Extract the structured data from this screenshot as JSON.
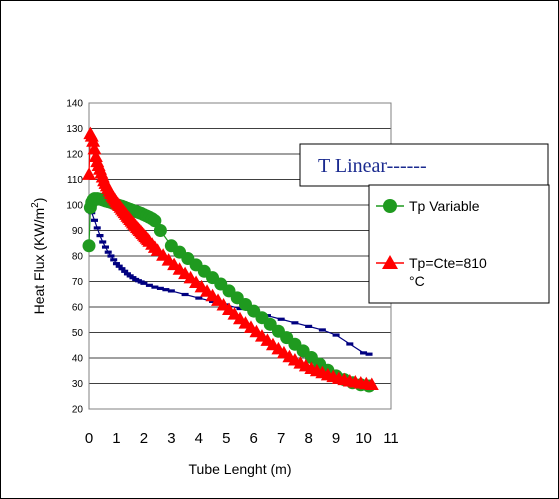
{
  "chart_data": {
    "type": "line",
    "xlabel": "Tube Lenght (m)",
    "ylabel": "Heat Flux  (KW/m",
    "ylabel_sup": "2",
    "ylabel_tail": ")",
    "annotation": "T Linear------",
    "xlim": [
      0,
      11
    ],
    "ylim": [
      20,
      140
    ],
    "x_ticks": [
      "0",
      "1",
      "2",
      "3",
      "4",
      "5",
      "6",
      "7",
      "8",
      "9",
      "10",
      "11"
    ],
    "y_ticks": [
      "20",
      "30",
      "40",
      "50",
      "60",
      "70",
      "80",
      "90",
      "100",
      "110",
      "120",
      "130",
      "140"
    ],
    "grid": true,
    "legend_position": "right",
    "colors": {
      "blue": "#000080",
      "green": "#1f9a1f",
      "red": "#ff0000"
    },
    "series": [
      {
        "name": "",
        "style": "blue-dash-line",
        "x": [
          0.0,
          0.05,
          0.1,
          0.2,
          0.3,
          0.4,
          0.5,
          0.6,
          0.7,
          0.8,
          0.9,
          1.0,
          1.1,
          1.2,
          1.3,
          1.4,
          1.5,
          1.6,
          1.7,
          1.8,
          1.9,
          2.0,
          2.2,
          2.4,
          2.6,
          2.8,
          3.0,
          3.5,
          4.0,
          4.5,
          5.0,
          5.5,
          6.0,
          6.5,
          7.0,
          7.5,
          8.0,
          8.5,
          9.0,
          9.5,
          10.0,
          10.2
        ],
        "y": [
          98,
          99,
          97,
          94,
          91,
          88,
          85.5,
          83.5,
          81.5,
          80,
          78.5,
          77,
          76,
          75,
          74,
          73,
          72.2,
          71.5,
          70.8,
          70.3,
          69.8,
          69.3,
          68.5,
          67.8,
          67.3,
          66.8,
          66.3,
          64.9,
          63.5,
          62.2,
          60.8,
          59.4,
          58,
          56.6,
          55.2,
          53.8,
          52.4,
          51,
          49,
          45.5,
          42,
          41.5
        ]
      },
      {
        "name": "Tp Variable",
        "x": [
          0.0,
          0.05,
          0.1,
          0.15,
          0.2,
          0.3,
          0.4,
          0.5,
          0.6,
          0.7,
          0.8,
          0.9,
          1.0,
          1.1,
          1.2,
          1.3,
          1.4,
          1.5,
          1.6,
          1.7,
          1.8,
          1.9,
          2.0,
          2.1,
          2.2,
          2.3,
          2.4,
          2.6,
          3.0,
          3.3,
          3.6,
          3.9,
          4.2,
          4.5,
          4.8,
          5.1,
          5.4,
          5.7,
          6.0,
          6.3,
          6.6,
          6.9,
          7.2,
          7.5,
          7.8,
          8.1,
          8.4,
          8.7,
          9.0,
          9.3,
          9.6,
          9.9,
          10.2
        ],
        "y": [
          84,
          99,
          101,
          102,
          102.5,
          102.5,
          102.3,
          102,
          101.6,
          101.3,
          101,
          100.6,
          100.2,
          99.8,
          99.5,
          99.1,
          98.7,
          98.3,
          97.9,
          97.5,
          97.1,
          96.7,
          96.2,
          95.7,
          95.2,
          94.6,
          93.8,
          90,
          84,
          81.5,
          79,
          76.5,
          74,
          71.5,
          69,
          66.3,
          63.6,
          61,
          58.4,
          55.8,
          53.2,
          50.5,
          48,
          45.4,
          42.8,
          40.2,
          37.6,
          35.2,
          33,
          31.5,
          30.3,
          29.5,
          29
        ]
      },
      {
        "name": "Tp=Cte=810 °C",
        "x": [
          0.0,
          0.05,
          0.1,
          0.15,
          0.2,
          0.25,
          0.3,
          0.35,
          0.4,
          0.45,
          0.5,
          0.55,
          0.6,
          0.65,
          0.7,
          0.75,
          0.8,
          0.85,
          0.9,
          0.95,
          1.0,
          1.05,
          1.1,
          1.15,
          1.2,
          1.25,
          1.3,
          1.35,
          1.4,
          1.45,
          1.5,
          1.55,
          1.6,
          1.65,
          1.7,
          1.75,
          1.8,
          1.85,
          1.9,
          1.95,
          2.0,
          2.05,
          2.1,
          2.15,
          2.2,
          2.3,
          2.4,
          2.5,
          2.7,
          2.9,
          3.1,
          3.3,
          3.5,
          3.7,
          3.9,
          4.1,
          4.3,
          4.5,
          4.7,
          4.9,
          5.1,
          5.3,
          5.5,
          5.7,
          5.9,
          6.1,
          6.3,
          6.5,
          6.7,
          6.9,
          7.1,
          7.3,
          7.5,
          7.7,
          7.9,
          8.1,
          8.3,
          8.5,
          8.7,
          8.9,
          9.1,
          9.3,
          9.5,
          9.7,
          9.9,
          10.1,
          10.3
        ],
        "y": [
          112,
          128,
          127,
          125,
          122,
          119,
          117,
          115.5,
          114,
          112.5,
          111,
          109.5,
          108.5,
          107.5,
          106.5,
          105.5,
          104.5,
          103.5,
          102.8,
          102,
          101.2,
          100.5,
          99.8,
          99.1,
          98.4,
          97.7,
          97,
          96.3,
          95.6,
          95,
          94.3,
          93.7,
          93,
          92.4,
          91.8,
          91.2,
          90.6,
          90,
          89.4,
          88.8,
          88.2,
          87.6,
          87,
          86.4,
          85.8,
          84.6,
          83.4,
          82.2,
          80.3,
          78.4,
          76.6,
          74.8,
          73.1,
          71.4,
          69.6,
          67.9,
          66.2,
          64.4,
          62.6,
          60.8,
          59,
          57.2,
          55.4,
          53.7,
          52,
          50.3,
          48.6,
          46.9,
          45.2,
          43.6,
          42,
          40.5,
          39.2,
          38,
          36.9,
          35.9,
          35,
          34.2,
          33.4,
          32.7,
          32,
          31.5,
          31,
          30.6,
          30.2,
          29.9,
          29.6
        ]
      }
    ]
  }
}
